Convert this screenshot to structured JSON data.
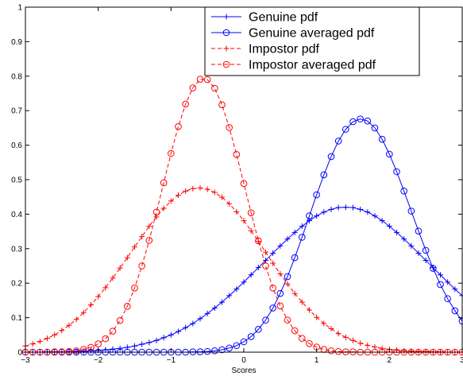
{
  "chart_data": {
    "type": "line",
    "title": "",
    "xlabel": "Scores",
    "ylabel": "",
    "xlim": [
      -3,
      3
    ],
    "ylim": [
      0,
      1
    ],
    "xticks": [
      -3,
      -2,
      -1,
      0,
      1,
      2,
      3
    ],
    "xtick_labels": [
      "−3",
      "−2",
      "−1",
      "0",
      "1",
      "2",
      "3"
    ],
    "yticks": [
      0,
      0.1,
      0.2,
      0.3,
      0.4,
      0.5,
      0.6,
      0.7,
      0.8,
      0.9,
      1
    ],
    "ytick_labels": [
      "0",
      "0.1",
      "0.2",
      "0.3",
      "0.4",
      "0.5",
      "0.6",
      "0.7",
      "0.8",
      "0.9",
      "1"
    ],
    "grid": false,
    "legend_position": "top-right",
    "x": [
      -3.0,
      -2.9,
      -2.8,
      -2.7,
      -2.6,
      -2.5,
      -2.4,
      -2.3,
      -2.2,
      -2.1,
      -2.0,
      -1.9,
      -1.8,
      -1.7,
      -1.6,
      -1.5,
      -1.4,
      -1.3,
      -1.2,
      -1.1,
      -1.0,
      -0.9,
      -0.8,
      -0.7,
      -0.6,
      -0.5,
      -0.4,
      -0.3,
      -0.2,
      -0.1,
      0.0,
      0.1,
      0.2,
      0.3,
      0.4,
      0.5,
      0.6,
      0.7,
      0.8,
      0.9,
      1.0,
      1.1,
      1.2,
      1.3,
      1.4,
      1.5,
      1.6,
      1.7,
      1.8,
      1.9,
      2.0,
      2.1,
      2.2,
      2.3,
      2.4,
      2.5,
      2.6,
      2.7,
      2.8,
      2.9,
      3.0
    ],
    "series": [
      {
        "name": "Genuine pdf",
        "color": "#0000ff",
        "line": "solid",
        "marker": "plus",
        "values": [
          0.0,
          0.0,
          0.0,
          0.001,
          0.001,
          0.001,
          0.002,
          0.002,
          0.003,
          0.004,
          0.005,
          0.007,
          0.009,
          0.011,
          0.014,
          0.018,
          0.023,
          0.028,
          0.034,
          0.042,
          0.05,
          0.06,
          0.071,
          0.083,
          0.097,
          0.112,
          0.128,
          0.145,
          0.164,
          0.183,
          0.203,
          0.224,
          0.245,
          0.266,
          0.287,
          0.308,
          0.328,
          0.347,
          0.365,
          0.381,
          0.395,
          0.406,
          0.414,
          0.419,
          0.42,
          0.419,
          0.414,
          0.406,
          0.395,
          0.381,
          0.365,
          0.347,
          0.328,
          0.308,
          0.287,
          0.266,
          0.245,
          0.224,
          0.203,
          0.183,
          0.164
        ]
      },
      {
        "name": "Genuine averaged pdf",
        "color": "#0000ff",
        "line": "solid",
        "marker": "circle",
        "values": [
          0.0,
          0.0,
          0.0,
          0.0,
          0.0,
          0.0,
          0.0,
          0.0,
          0.0,
          0.0,
          0.0,
          0.0,
          0.0,
          0.0,
          0.0,
          0.0,
          0.0,
          0.0,
          0.0,
          0.0,
          0.0,
          0.0,
          0.0,
          0.001,
          0.001,
          0.002,
          0.004,
          0.007,
          0.012,
          0.019,
          0.03,
          0.045,
          0.066,
          0.093,
          0.128,
          0.17,
          0.219,
          0.274,
          0.333,
          0.395,
          0.456,
          0.514,
          0.567,
          0.612,
          0.646,
          0.668,
          0.676,
          0.67,
          0.65,
          0.617,
          0.574,
          0.523,
          0.467,
          0.409,
          0.351,
          0.295,
          0.243,
          0.196,
          0.155,
          0.12,
          0.09
        ]
      },
      {
        "name": "Impostor pdf",
        "color": "#ff0000",
        "line": "dashed",
        "marker": "plus",
        "values": [
          0.018,
          0.024,
          0.031,
          0.04,
          0.05,
          0.063,
          0.078,
          0.095,
          0.115,
          0.137,
          0.161,
          0.187,
          0.215,
          0.244,
          0.274,
          0.305,
          0.335,
          0.365,
          0.392,
          0.417,
          0.438,
          0.455,
          0.467,
          0.474,
          0.476,
          0.472,
          0.463,
          0.449,
          0.43,
          0.407,
          0.381,
          0.352,
          0.321,
          0.29,
          0.258,
          0.227,
          0.198,
          0.17,
          0.145,
          0.122,
          0.101,
          0.083,
          0.068,
          0.054,
          0.043,
          0.034,
          0.026,
          0.02,
          0.015,
          0.011,
          0.008,
          0.006,
          0.004,
          0.003,
          0.002,
          0.002,
          0.001,
          0.001,
          0.0,
          0.0,
          0.0
        ]
      },
      {
        "name": "Impostor averaged pdf",
        "color": "#ff0000",
        "line": "dashed",
        "marker": "circle",
        "values": [
          0.0,
          0.0,
          0.0,
          0.0,
          0.001,
          0.001,
          0.002,
          0.004,
          0.008,
          0.014,
          0.024,
          0.039,
          0.061,
          0.092,
          0.133,
          0.186,
          0.25,
          0.324,
          0.406,
          0.491,
          0.576,
          0.654,
          0.719,
          0.766,
          0.791,
          0.79,
          0.765,
          0.717,
          0.651,
          0.573,
          0.489,
          0.404,
          0.323,
          0.25,
          0.186,
          0.134,
          0.093,
          0.062,
          0.04,
          0.025,
          0.015,
          0.008,
          0.004,
          0.002,
          0.001,
          0.001,
          0.0,
          0.0,
          0.0,
          0.0,
          0.0,
          0.0,
          0.0,
          0.0,
          0.0,
          0.0,
          0.0,
          0.0,
          0.0,
          0.0,
          0.0
        ]
      }
    ]
  }
}
